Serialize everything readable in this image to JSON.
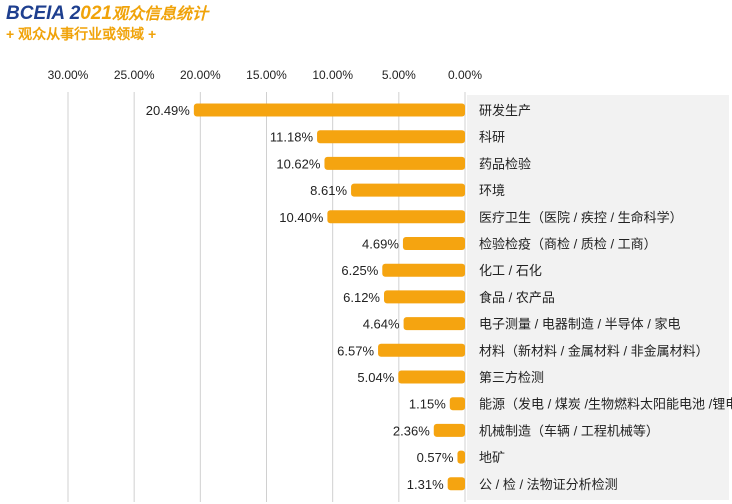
{
  "header": {
    "brand_part1": "BCEIA 2",
    "brand_part2": "021",
    "brand_part3": "观众信息统计",
    "subtitle": "+ 观众从事行业或领域 +"
  },
  "colors": {
    "bar": "#f5a410",
    "label_bg": "#f2f2f2",
    "grid": "#d0d0d0",
    "text": "#222222",
    "brand_blue": "#1e3f8f",
    "brand_orange": "#f0a30a"
  },
  "chart_data": {
    "type": "bar",
    "orientation": "horizontal",
    "x_direction": "reversed",
    "xlim": [
      0,
      30
    ],
    "x_ticks": [
      "30.00%",
      "25.00%",
      "20.00%",
      "15.00%",
      "10.00%",
      "5.00%",
      "0.00%"
    ],
    "grid": true,
    "categories": [
      "研发生产",
      "科研",
      "药品检验",
      "环境",
      "医疗卫生（医院 / 疾控 / 生命科学）",
      "检验检疫（商检 / 质检 / 工商）",
      "化工 / 石化",
      "食品 / 农产品",
      "电子测量 / 电器制造 / 半导体 / 家电",
      "材料（新材料 / 金属材料 / 非金属材料）",
      "第三方检测",
      "能源（发电 / 煤炭 /生物燃料太阳能电池 /锂电池）",
      "机械制造（车辆 / 工程机械等）",
      "地矿",
      "公 / 检 / 法物证分析检测"
    ],
    "values": [
      20.49,
      11.18,
      10.62,
      8.61,
      10.4,
      4.69,
      6.25,
      6.12,
      4.64,
      6.57,
      5.04,
      1.15,
      2.36,
      0.57,
      1.31
    ],
    "value_labels": [
      "20.49%",
      "11.18%",
      "10.62%",
      "8.61%",
      "10.40%",
      "4.69%",
      "6.25%",
      "6.12%",
      "4.64%",
      "6.57%",
      "5.04%",
      "1.15%",
      "2.36%",
      "0.57%",
      "1.31%"
    ]
  }
}
